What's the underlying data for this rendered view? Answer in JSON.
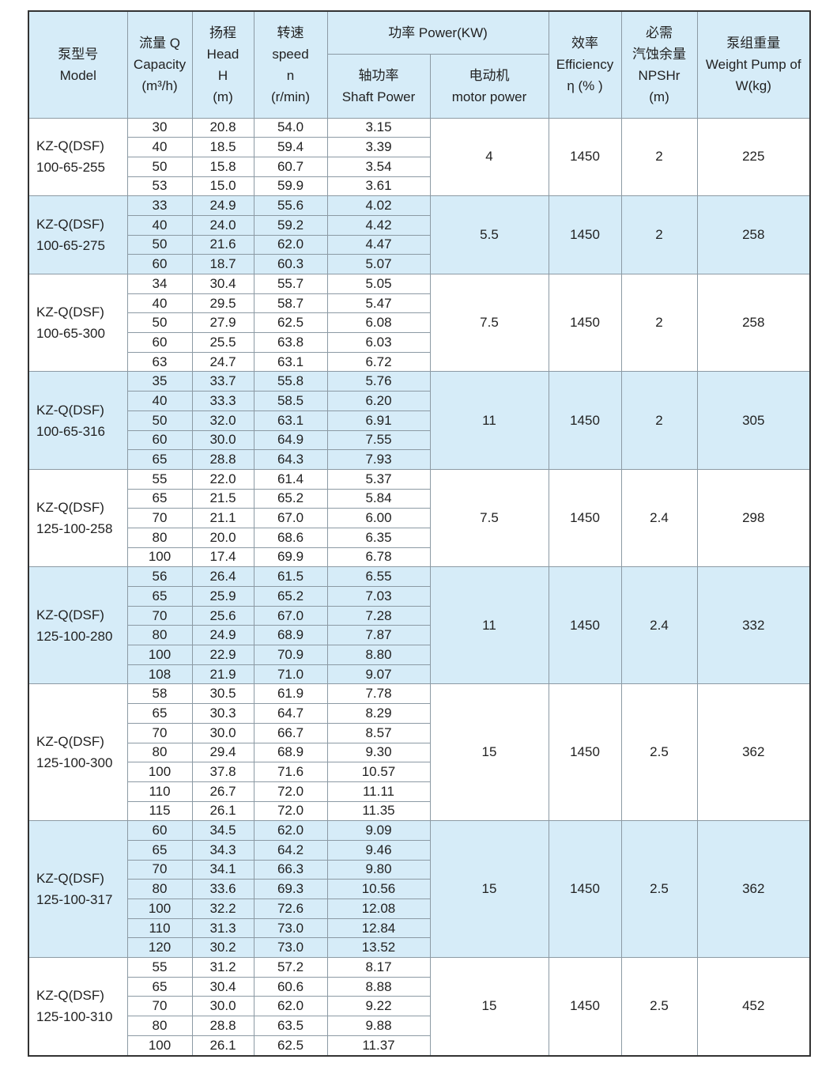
{
  "header": {
    "model": [
      "泵型号",
      "Model"
    ],
    "capacity": [
      "流量 Q",
      "Capacity",
      "(m³/h)"
    ],
    "head": [
      "扬程",
      "Head",
      "H",
      "(m)"
    ],
    "speed": [
      "转速",
      "speed",
      "n",
      "(r/min)"
    ],
    "power": "功率 Power(KW)",
    "shaft_power": [
      "轴功率",
      "Shaft Power"
    ],
    "motor_power": [
      "电动机",
      "motor power"
    ],
    "efficiency": [
      "效率",
      "Efficiency",
      "η (% )"
    ],
    "npshr": [
      "必需",
      "汽蚀余量",
      "NPSHr",
      "(m)"
    ],
    "weight": [
      "泵组重量",
      "Weight Pump of",
      "W(kg)"
    ]
  },
  "colors": {
    "header_bg": "#d6ecf8",
    "band_bg": "#d6ecf8",
    "border": "#8c9aa4"
  },
  "groups": [
    {
      "model": [
        "KZ-Q(DSF)",
        "100-65-255"
      ],
      "motor": "4",
      "eff": "1450",
      "npshr": "2",
      "weight": "225",
      "shaded": false,
      "rows": [
        [
          "30",
          "20.8",
          "54.0",
          "3.15"
        ],
        [
          "40",
          "18.5",
          "59.4",
          "3.39"
        ],
        [
          "50",
          "15.8",
          "60.7",
          "3.54"
        ],
        [
          "53",
          "15.0",
          "59.9",
          "3.61"
        ]
      ]
    },
    {
      "model": [
        "KZ-Q(DSF)",
        "100-65-275"
      ],
      "motor": "5.5",
      "eff": "1450",
      "npshr": "2",
      "weight": "258",
      "shaded": true,
      "rows": [
        [
          "33",
          "24.9",
          "55.6",
          "4.02"
        ],
        [
          "40",
          "24.0",
          "59.2",
          "4.42"
        ],
        [
          "50",
          "21.6",
          "62.0",
          "4.47"
        ],
        [
          "60",
          "18.7",
          "60.3",
          "5.07"
        ]
      ]
    },
    {
      "model": [
        "KZ-Q(DSF)",
        "100-65-300"
      ],
      "motor": "7.5",
      "eff": "1450",
      "npshr": "2",
      "weight": "258",
      "shaded": false,
      "rows": [
        [
          "34",
          "30.4",
          "55.7",
          "5.05"
        ],
        [
          "40",
          "29.5",
          "58.7",
          "5.47"
        ],
        [
          "50",
          "27.9",
          "62.5",
          "6.08"
        ],
        [
          "60",
          "25.5",
          "63.8",
          "6.03"
        ],
        [
          "63",
          "24.7",
          "63.1",
          "6.72"
        ]
      ]
    },
    {
      "model": [
        "KZ-Q(DSF)",
        "100-65-316"
      ],
      "motor": "11",
      "eff": "1450",
      "npshr": "2",
      "weight": "305",
      "shaded": true,
      "rows": [
        [
          "35",
          "33.7",
          "55.8",
          "5.76"
        ],
        [
          "40",
          "33.3",
          "58.5",
          "6.20"
        ],
        [
          "50",
          "32.0",
          "63.1",
          "6.91"
        ],
        [
          "60",
          "30.0",
          "64.9",
          "7.55"
        ],
        [
          "65",
          "28.8",
          "64.3",
          "7.93"
        ]
      ]
    },
    {
      "model": [
        "KZ-Q(DSF)",
        "125-100-258"
      ],
      "motor": "7.5",
      "eff": "1450",
      "npshr": "2.4",
      "weight": "298",
      "shaded": false,
      "rows": [
        [
          "55",
          "22.0",
          "61.4",
          "5.37"
        ],
        [
          "65",
          "21.5",
          "65.2",
          "5.84"
        ],
        [
          "70",
          "21.1",
          "67.0",
          "6.00"
        ],
        [
          "80",
          "20.0",
          "68.6",
          "6.35"
        ],
        [
          "100",
          "17.4",
          "69.9",
          "6.78"
        ]
      ]
    },
    {
      "model": [
        "KZ-Q(DSF)",
        "125-100-280"
      ],
      "motor": "11",
      "eff": "1450",
      "npshr": "2.4",
      "weight": "332",
      "shaded": true,
      "rows": [
        [
          "56",
          "26.4",
          "61.5",
          "6.55"
        ],
        [
          "65",
          "25.9",
          "65.2",
          "7.03"
        ],
        [
          "70",
          "25.6",
          "67.0",
          "7.28"
        ],
        [
          "80",
          "24.9",
          "68.9",
          "7.87"
        ],
        [
          "100",
          "22.9",
          "70.9",
          "8.80"
        ],
        [
          "108",
          "21.9",
          "71.0",
          "9.07"
        ]
      ]
    },
    {
      "model": [
        "KZ-Q(DSF)",
        "125-100-300"
      ],
      "motor": "15",
      "eff": "1450",
      "npshr": "2.5",
      "weight": "362",
      "shaded": false,
      "rows": [
        [
          "58",
          "30.5",
          "61.9",
          "7.78"
        ],
        [
          "65",
          "30.3",
          "64.7",
          "8.29"
        ],
        [
          "70",
          "30.0",
          "66.7",
          "8.57"
        ],
        [
          "80",
          "29.4",
          "68.9",
          "9.30"
        ],
        [
          "100",
          "37.8",
          "71.6",
          "10.57"
        ],
        [
          "110",
          "26.7",
          "72.0",
          "11.11"
        ],
        [
          "115",
          "26.1",
          "72.0",
          "11.35"
        ]
      ]
    },
    {
      "model": [
        "KZ-Q(DSF)",
        "125-100-317"
      ],
      "motor": "15",
      "eff": "1450",
      "npshr": "2.5",
      "weight": "362",
      "shaded": true,
      "rows": [
        [
          "60",
          "34.5",
          "62.0",
          "9.09"
        ],
        [
          "65",
          "34.3",
          "64.2",
          "9.46"
        ],
        [
          "70",
          "34.1",
          "66.3",
          "9.80"
        ],
        [
          "80",
          "33.6",
          "69.3",
          "10.56"
        ],
        [
          "100",
          "32.2",
          "72.6",
          "12.08"
        ],
        [
          "110",
          "31.3",
          "73.0",
          "12.84"
        ],
        [
          "120",
          "30.2",
          "73.0",
          "13.52"
        ]
      ]
    },
    {
      "model": [
        "KZ-Q(DSF)",
        "125-100-310"
      ],
      "motor": "15",
      "eff": "1450",
      "npshr": "2.5",
      "weight": "452",
      "shaded": false,
      "rows": [
        [
          "55",
          "31.2",
          "57.2",
          "8.17"
        ],
        [
          "65",
          "30.4",
          "60.6",
          "8.88"
        ],
        [
          "70",
          "30.0",
          "62.0",
          "9.22"
        ],
        [
          "80",
          "28.8",
          "63.5",
          "9.88"
        ],
        [
          "100",
          "26.1",
          "62.5",
          "11.37"
        ]
      ]
    }
  ]
}
